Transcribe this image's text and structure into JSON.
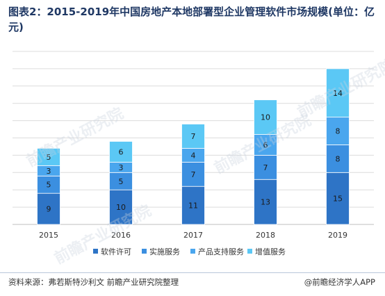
{
  "header": {
    "title": "图表2：2015-2019年中国房地产本地部署型企业管理软件市场规模(单位：亿元)"
  },
  "footer": {
    "source": "资料来源：弗若斯特沙利文 前瞻产业研究院整理",
    "brand": "@前瞻经济学人APP"
  },
  "watermark": {
    "text": "前瞻产业研究院"
  },
  "chart_data": {
    "type": "bar",
    "stacked": true,
    "categories": [
      "2015",
      "2016",
      "2017",
      "2018",
      "2019"
    ],
    "series": [
      {
        "name": "软件许可",
        "values": [
          9,
          10,
          11,
          13,
          15
        ],
        "color": "#2e74c6"
      },
      {
        "name": "实施服务",
        "values": [
          5,
          5,
          7,
          7,
          8
        ],
        "color": "#3b8fe0"
      },
      {
        "name": "产品支持服务",
        "values": [
          3,
          3,
          4,
          6,
          8
        ],
        "color": "#4aa6ee"
      },
      {
        "name": "增值服务",
        "values": [
          5,
          6,
          7,
          10,
          14
        ],
        "color": "#5bc8f5"
      }
    ],
    "ylim": [
      0,
      50
    ],
    "grid": true,
    "legend": "bottom",
    "data_labels": true
  }
}
